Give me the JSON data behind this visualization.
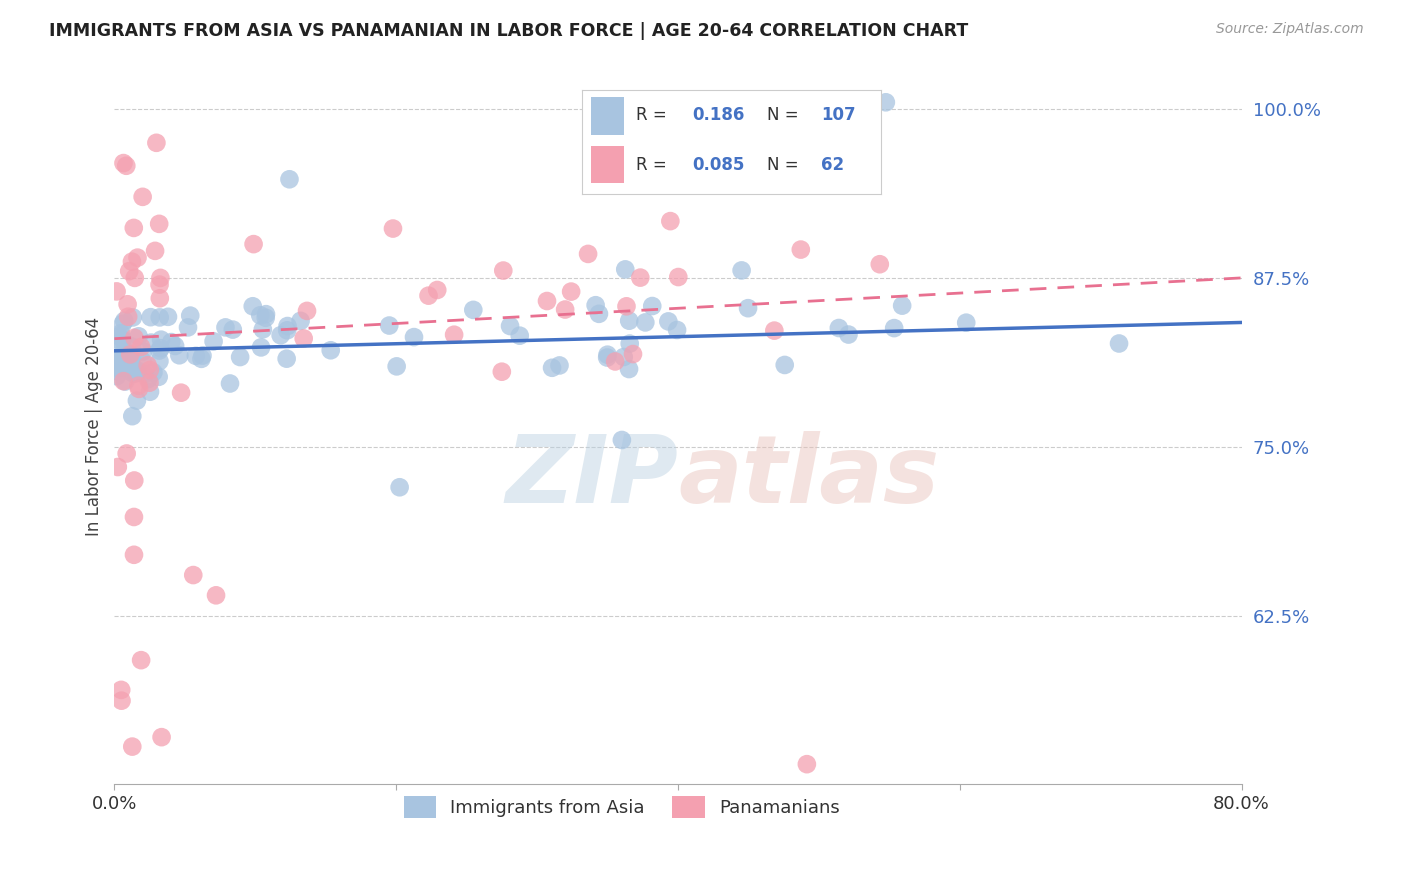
{
  "title": "IMMIGRANTS FROM ASIA VS PANAMANIAN IN LABOR FORCE | AGE 20-64 CORRELATION CHART",
  "source": "Source: ZipAtlas.com",
  "ylabel": "In Labor Force | Age 20-64",
  "xlim": [
    0.0,
    0.8
  ],
  "ylim": [
    0.5,
    1.03
  ],
  "ytick_vals": [
    0.625,
    0.75,
    0.875,
    1.0
  ],
  "ytick_labels": [
    "62.5%",
    "75.0%",
    "87.5%",
    "100.0%"
  ],
  "blue_R": 0.186,
  "blue_N": 107,
  "pink_R": 0.085,
  "pink_N": 62,
  "blue_color": "#a8c4e0",
  "pink_color": "#f4a0b0",
  "blue_line_color": "#4472c4",
  "pink_line_color": "#e87090",
  "watermark": "ZIPatlas",
  "legend_blue_text": [
    "R = ",
    "0.186",
    "N = ",
    "107"
  ],
  "legend_pink_text": [
    "R = ",
    "0.085",
    "N = ",
    "62"
  ],
  "legend_value_color": "#4472c4",
  "legend_label_color": "#333333",
  "bottom_legend": [
    "Immigrants from Asia",
    "Panamanians"
  ]
}
